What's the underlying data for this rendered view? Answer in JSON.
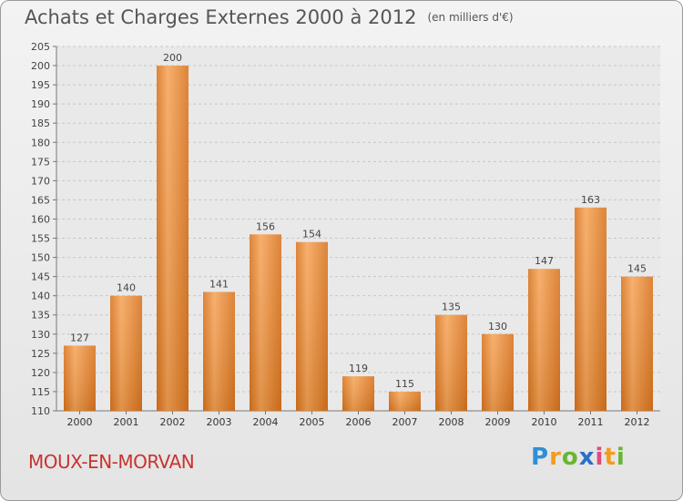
{
  "title": "Achats et Charges Externes 2000 à 2012",
  "unit": "(en milliers d'€)",
  "town": "MOUX-EN-MORVAN",
  "logo": {
    "p": "P",
    "r": "r",
    "o": "o",
    "x": "x",
    "i": "i",
    "t": "t",
    "i2": "i"
  },
  "colors": {
    "bar_light": "#f6a55a",
    "bar_dark": "#d8741f",
    "title": "#555555",
    "town": "#c8342f"
  },
  "chart_data": {
    "type": "bar",
    "categories": [
      "2000",
      "2001",
      "2002",
      "2003",
      "2004",
      "2005",
      "2006",
      "2007",
      "2008",
      "2009",
      "2010",
      "2011",
      "2012"
    ],
    "values": [
      127,
      140,
      200,
      141,
      156,
      154,
      119,
      115,
      135,
      130,
      147,
      163,
      145
    ],
    "ylim": [
      110,
      205
    ],
    "yticks": [
      110,
      115,
      120,
      125,
      130,
      135,
      140,
      145,
      150,
      155,
      160,
      165,
      170,
      175,
      180,
      185,
      190,
      195,
      200,
      205
    ],
    "grid": true,
    "xlabel": "",
    "ylabel": ""
  }
}
